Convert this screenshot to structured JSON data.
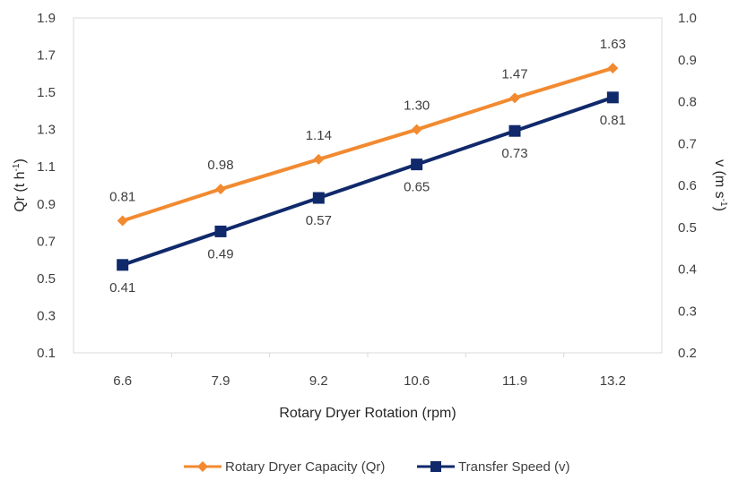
{
  "chart_data": {
    "type": "line",
    "x": [
      6.6,
      7.9,
      9.2,
      10.6,
      11.9,
      13.2
    ],
    "xlabel": "Rotary Dryer Rotation (rpm)",
    "ylabel_left_main": "Qr (t h",
    "ylabel_left_sup": "-1",
    "ylabel_left_end": ")",
    "ylabel_right_main": "v (m s",
    "ylabel_right_sup": "-1",
    "ylabel_right_end": ")",
    "y_left_ticks": [
      "0.1",
      "0.3",
      "0.5",
      "0.7",
      "0.9",
      "1.1",
      "1.3",
      "1.5",
      "1.7",
      "1.9"
    ],
    "y_right_ticks": [
      "0.2",
      "0.3",
      "0.4",
      "0.5",
      "0.6",
      "0.7",
      "0.8",
      "0.9",
      "1.0"
    ],
    "ylim_left": [
      0.1,
      1.9
    ],
    "ylim_right": [
      0.2,
      1.0
    ],
    "legend_position": "bottom",
    "series": [
      {
        "name": "Rotary Dryer Capacity (Qr)",
        "axis": "left",
        "color": "#F28A30",
        "marker": "diamond",
        "values": [
          0.81,
          0.98,
          1.14,
          1.3,
          1.47,
          1.63
        ],
        "labels": [
          "0.81",
          "0.98",
          "1.14",
          "1.30",
          "1.47",
          "1.63"
        ],
        "label_position": "above"
      },
      {
        "name": "Transfer Speed (v)",
        "axis": "right",
        "color": "#10296B",
        "marker": "square",
        "values": [
          0.41,
          0.49,
          0.57,
          0.65,
          0.73,
          0.81
        ],
        "labels": [
          "0.41",
          "0.49",
          "0.57",
          "0.65",
          "0.73",
          "0.81"
        ],
        "label_position": "below"
      }
    ]
  }
}
